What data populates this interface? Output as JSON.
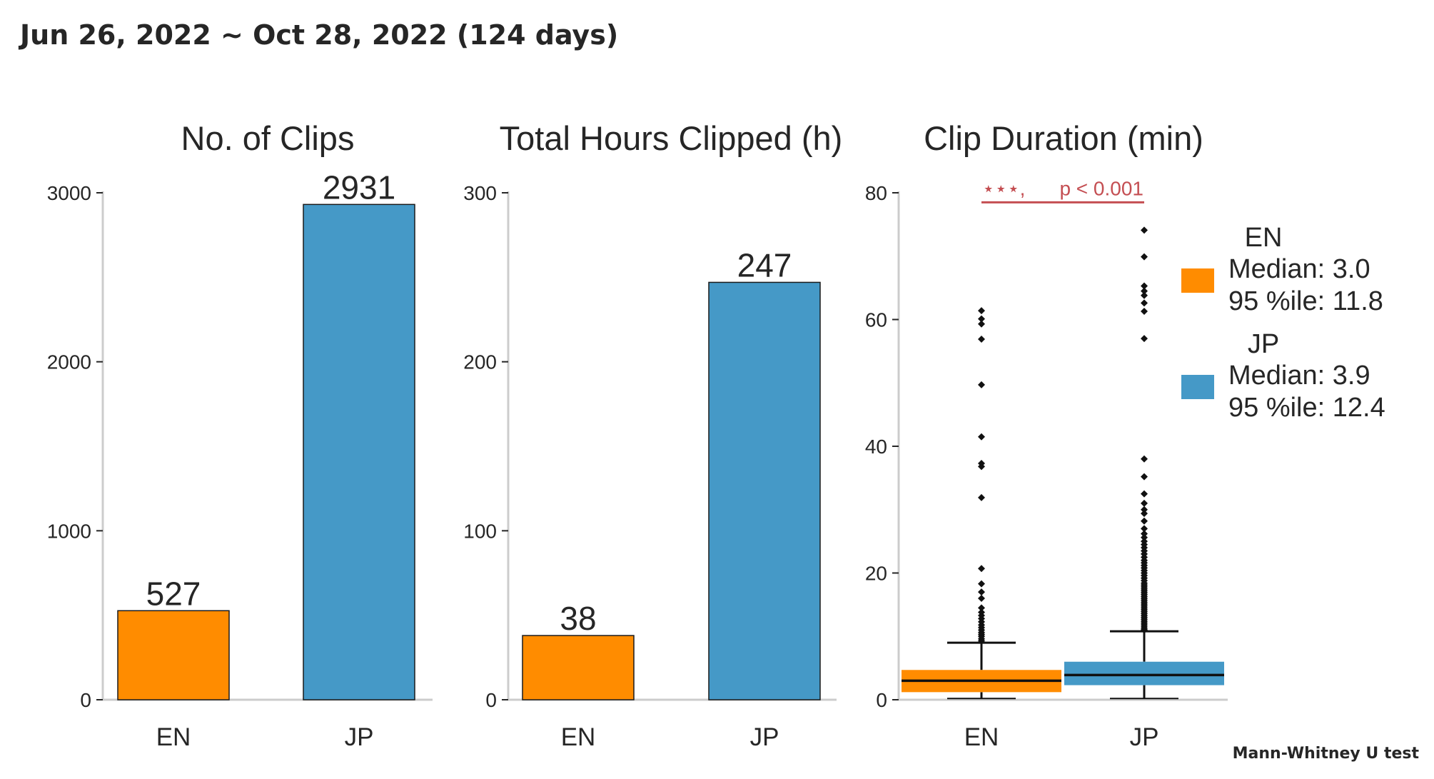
{
  "suptitle": "Jun 26, 2022 ~ Oct 28, 2022 (124 days)",
  "footnote": "Mann-Whitney U test",
  "colors": {
    "EN": "#ff8c00",
    "JP": "#4599c7",
    "axis": "#cccccc",
    "significance": "#c44e52"
  },
  "chart_data": [
    {
      "type": "bar",
      "title": "No. of Clips",
      "categories": [
        "EN",
        "JP"
      ],
      "values": [
        527,
        2931
      ],
      "data_labels": [
        "527",
        "2931"
      ],
      "ylim": [
        0,
        3100
      ],
      "yticks": [
        0,
        1000,
        2000,
        3000
      ],
      "ytick_labels": [
        "0",
        "1000",
        "2000",
        "3000"
      ],
      "grid": false
    },
    {
      "type": "bar",
      "title": "Total Hours Clipped (h)",
      "categories": [
        "EN",
        "JP"
      ],
      "values": [
        38,
        247
      ],
      "data_labels": [
        "38",
        "247"
      ],
      "ylim": [
        0,
        300
      ],
      "yticks": [
        0,
        100,
        200,
        300
      ],
      "ytick_labels": [
        "0",
        "100",
        "200",
        "300"
      ],
      "grid": false
    },
    {
      "type": "box",
      "title": "Clip Duration (min)",
      "categories": [
        "EN",
        "JP"
      ],
      "ylim": [
        0,
        80
      ],
      "yticks": [
        0,
        20,
        40,
        60,
        80
      ],
      "ytick_labels": [
        "0",
        "20",
        "40",
        "60",
        "80"
      ],
      "grid": false,
      "boxes": [
        {
          "name": "EN",
          "min": 0.2,
          "q1": 1.2,
          "median": 3.0,
          "q3": 4.7,
          "whisker_high": 9.0,
          "outliers": [
            9.3,
            9.6,
            10.0,
            10.3,
            10.6,
            11.0,
            11.4,
            11.8,
            12.3,
            12.8,
            13.3,
            13.8,
            14.5,
            16.0,
            17.0,
            18.3,
            20.7,
            31.9,
            36.8,
            37.3,
            41.5,
            49.7,
            56.9,
            59.3,
            60.1,
            61.4
          ]
        },
        {
          "name": "JP",
          "min": 0.2,
          "q1": 2.3,
          "median": 3.9,
          "q3": 6.0,
          "whisker_high": 10.8,
          "outliers": [
            11.0,
            11.2,
            11.5,
            11.8,
            12.1,
            12.4,
            12.7,
            13.0,
            13.3,
            13.6,
            13.9,
            14.2,
            14.5,
            14.8,
            15.1,
            15.4,
            15.7,
            16.0,
            16.3,
            16.6,
            16.9,
            17.2,
            17.5,
            17.8,
            18.1,
            18.4,
            18.8,
            19.2,
            19.6,
            20.0,
            20.4,
            20.8,
            21.2,
            21.6,
            22.0,
            22.5,
            23.0,
            23.5,
            24.0,
            24.5,
            25.0,
            25.6,
            26.2,
            27.0,
            28.2,
            29.4,
            30.0,
            31.0,
            32.5,
            35.2,
            38.0,
            57.0,
            61.3,
            62.6,
            63.8,
            64.5,
            65.3,
            69.9,
            74.1
          ]
        }
      ],
      "significance": {
        "stars": "⋆⋆⋆,",
        "text": "p < 0.001"
      },
      "legend": {
        "placement": "right",
        "entries": [
          {
            "name": "EN",
            "lines": [
              "Median: 3.0",
              "95 %ile: 11.8"
            ]
          },
          {
            "name": "JP",
            "lines": [
              "Median: 3.9",
              "95 %ile: 12.4"
            ]
          }
        ]
      }
    }
  ]
}
